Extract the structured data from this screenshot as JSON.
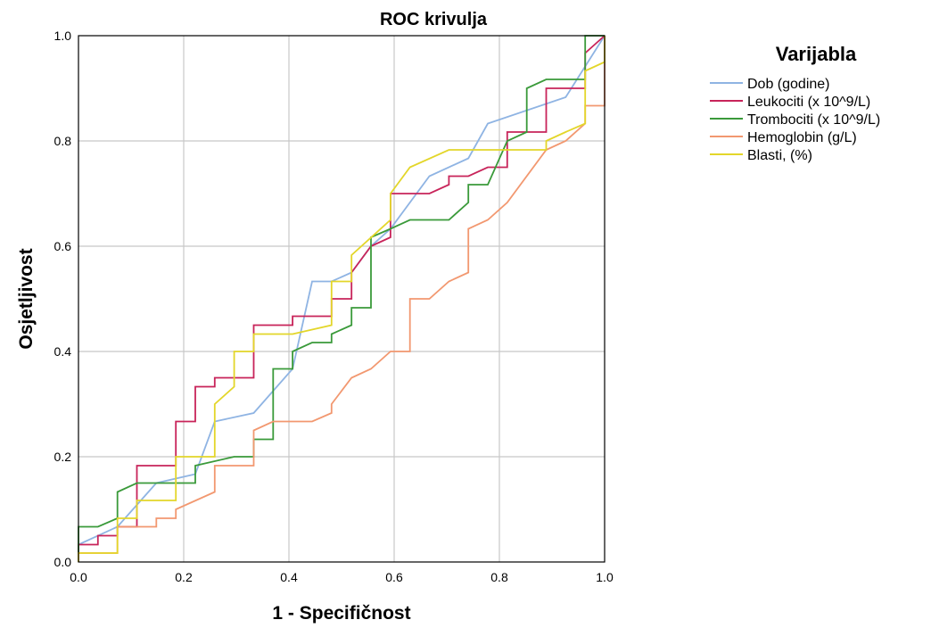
{
  "chart_data": {
    "type": "line",
    "title": "ROC krivulja",
    "xlabel": "1 - Specifičnost",
    "ylabel": "Osjetljivost",
    "xlim": [
      0,
      1
    ],
    "ylim": [
      0,
      1
    ],
    "x_ticks": [
      "0.0",
      "0.2",
      "0.4",
      "0.6",
      "0.8",
      "1.0"
    ],
    "y_ticks": [
      "0.0",
      "0.2",
      "0.4",
      "0.6",
      "0.8",
      "1.0"
    ],
    "grid": true,
    "legend_title": "Varijabla",
    "legend_position": "top-right",
    "series": [
      {
        "name": "Dob (godine)",
        "color": "#8fb4e3",
        "step": false,
        "points": [
          [
            0,
            0
          ],
          [
            0,
            0.033
          ],
          [
            0.074,
            0.067
          ],
          [
            0.148,
            0.15
          ],
          [
            0.222,
            0.167
          ],
          [
            0.259,
            0.267
          ],
          [
            0.333,
            0.283
          ],
          [
            0.407,
            0.367
          ],
          [
            0.444,
            0.533
          ],
          [
            0.481,
            0.533
          ],
          [
            0.519,
            0.55
          ],
          [
            0.556,
            0.6
          ],
          [
            0.593,
            0.633
          ],
          [
            0.667,
            0.733
          ],
          [
            0.741,
            0.767
          ],
          [
            0.778,
            0.833
          ],
          [
            0.926,
            0.883
          ],
          [
            1,
            1
          ]
        ]
      },
      {
        "name": "Leukociti  (x 10^9/L)",
        "color": "#c8245a",
        "step": true,
        "points": [
          [
            0,
            0
          ],
          [
            0,
            0.033
          ],
          [
            0.037,
            0.033
          ],
          [
            0.037,
            0.05
          ],
          [
            0.074,
            0.05
          ],
          [
            0.074,
            0.067
          ],
          [
            0.111,
            0.067
          ],
          [
            0.111,
            0.183
          ],
          [
            0.185,
            0.183
          ],
          [
            0.185,
            0.267
          ],
          [
            0.222,
            0.267
          ],
          [
            0.222,
            0.333
          ],
          [
            0.259,
            0.333
          ],
          [
            0.259,
            0.35
          ],
          [
            0.333,
            0.35
          ],
          [
            0.333,
            0.45
          ],
          [
            0.407,
            0.45
          ],
          [
            0.407,
            0.467
          ],
          [
            0.481,
            0.467
          ],
          [
            0.481,
            0.5
          ],
          [
            0.519,
            0.5
          ],
          [
            0.519,
            0.55
          ],
          [
            0.556,
            0.6
          ],
          [
            0.593,
            0.617
          ],
          [
            0.593,
            0.7
          ],
          [
            0.667,
            0.7
          ],
          [
            0.704,
            0.717
          ],
          [
            0.704,
            0.733
          ],
          [
            0.741,
            0.733
          ],
          [
            0.778,
            0.75
          ],
          [
            0.815,
            0.75
          ],
          [
            0.815,
            0.817
          ],
          [
            0.889,
            0.817
          ],
          [
            0.889,
            0.9
          ],
          [
            0.963,
            0.9
          ],
          [
            0.963,
            0.967
          ],
          [
            1,
            1
          ]
        ]
      },
      {
        "name": "Trombociti (x 10^9/L)",
        "color": "#3a9a3a",
        "step": true,
        "points": [
          [
            0,
            0
          ],
          [
            0,
            0.067
          ],
          [
            0.037,
            0.067
          ],
          [
            0.074,
            0.083
          ],
          [
            0.074,
            0.133
          ],
          [
            0.111,
            0.15
          ],
          [
            0.148,
            0.15
          ],
          [
            0.222,
            0.15
          ],
          [
            0.222,
            0.183
          ],
          [
            0.296,
            0.2
          ],
          [
            0.333,
            0.2
          ],
          [
            0.333,
            0.233
          ],
          [
            0.37,
            0.233
          ],
          [
            0.37,
            0.367
          ],
          [
            0.407,
            0.367
          ],
          [
            0.407,
            0.4
          ],
          [
            0.444,
            0.417
          ],
          [
            0.481,
            0.417
          ],
          [
            0.481,
            0.433
          ],
          [
            0.519,
            0.45
          ],
          [
            0.519,
            0.483
          ],
          [
            0.556,
            0.483
          ],
          [
            0.556,
            0.617
          ],
          [
            0.593,
            0.633
          ],
          [
            0.63,
            0.65
          ],
          [
            0.704,
            0.65
          ],
          [
            0.741,
            0.683
          ],
          [
            0.741,
            0.717
          ],
          [
            0.778,
            0.717
          ],
          [
            0.815,
            0.8
          ],
          [
            0.852,
            0.817
          ],
          [
            0.852,
            0.9
          ],
          [
            0.889,
            0.917
          ],
          [
            0.963,
            0.917
          ],
          [
            0.963,
            1
          ],
          [
            1,
            1
          ]
        ]
      },
      {
        "name": "Hemoglobin (g/L)",
        "color": "#f29870",
        "step": true,
        "points": [
          [
            0,
            0
          ],
          [
            0,
            0.017
          ],
          [
            0.074,
            0.017
          ],
          [
            0.074,
            0.067
          ],
          [
            0.148,
            0.067
          ],
          [
            0.148,
            0.083
          ],
          [
            0.185,
            0.083
          ],
          [
            0.185,
            0.1
          ],
          [
            0.259,
            0.133
          ],
          [
            0.259,
            0.183
          ],
          [
            0.333,
            0.183
          ],
          [
            0.333,
            0.25
          ],
          [
            0.37,
            0.267
          ],
          [
            0.444,
            0.267
          ],
          [
            0.481,
            0.283
          ],
          [
            0.481,
            0.3
          ],
          [
            0.519,
            0.35
          ],
          [
            0.556,
            0.367
          ],
          [
            0.593,
            0.4
          ],
          [
            0.63,
            0.4
          ],
          [
            0.63,
            0.5
          ],
          [
            0.667,
            0.5
          ],
          [
            0.704,
            0.533
          ],
          [
            0.741,
            0.55
          ],
          [
            0.741,
            0.633
          ],
          [
            0.778,
            0.65
          ],
          [
            0.815,
            0.683
          ],
          [
            0.889,
            0.783
          ],
          [
            0.926,
            0.8
          ],
          [
            0.963,
            0.833
          ],
          [
            0.963,
            0.867
          ],
          [
            1,
            0.867
          ],
          [
            1,
            1
          ]
        ]
      },
      {
        "name": "Blasti, (%)",
        "color": "#e3d62a",
        "step": true,
        "points": [
          [
            0,
            0
          ],
          [
            0,
            0.017
          ],
          [
            0.074,
            0.017
          ],
          [
            0.074,
            0.083
          ],
          [
            0.111,
            0.083
          ],
          [
            0.111,
            0.117
          ],
          [
            0.185,
            0.117
          ],
          [
            0.185,
            0.2
          ],
          [
            0.259,
            0.2
          ],
          [
            0.259,
            0.3
          ],
          [
            0.296,
            0.333
          ],
          [
            0.296,
            0.4
          ],
          [
            0.333,
            0.4
          ],
          [
            0.333,
            0.433
          ],
          [
            0.37,
            0.433
          ],
          [
            0.407,
            0.433
          ],
          [
            0.481,
            0.45
          ],
          [
            0.481,
            0.533
          ],
          [
            0.519,
            0.533
          ],
          [
            0.519,
            0.583
          ],
          [
            0.593,
            0.65
          ],
          [
            0.593,
            0.7
          ],
          [
            0.63,
            0.75
          ],
          [
            0.704,
            0.783
          ],
          [
            0.778,
            0.783
          ],
          [
            0.889,
            0.783
          ],
          [
            0.889,
            0.8
          ],
          [
            0.926,
            0.817
          ],
          [
            0.963,
            0.833
          ],
          [
            0.963,
            0.933
          ],
          [
            1,
            0.95
          ],
          [
            1,
            1
          ]
        ]
      }
    ]
  }
}
